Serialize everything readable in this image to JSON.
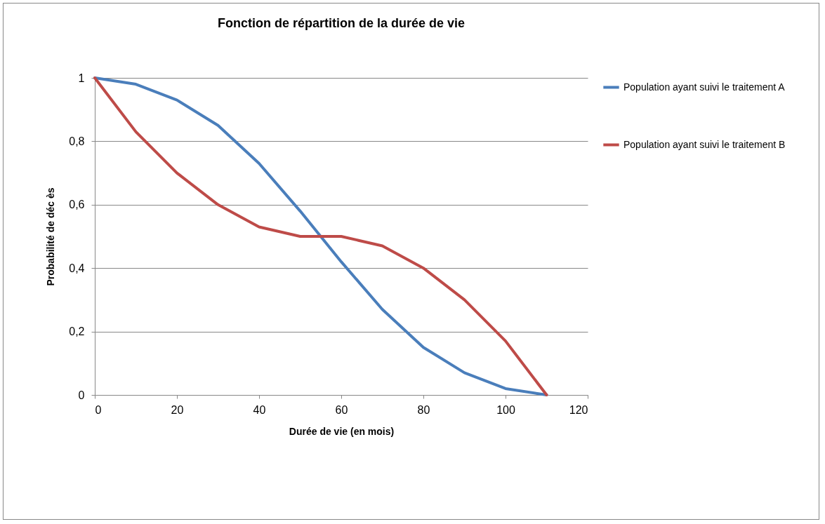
{
  "chart_data": {
    "type": "line",
    "title": "Fonction de répartition de la durée de vie",
    "xlabel": "Durée de vie (en mois)",
    "ylabel": "Probabilité de déc ès",
    "x": [
      0,
      10,
      20,
      30,
      40,
      50,
      60,
      70,
      80,
      90,
      100,
      110
    ],
    "series": [
      {
        "name": "Population ayant suivi le traitement A",
        "color": "#4a7ebb",
        "values": [
          1,
          0.98,
          0.93,
          0.85,
          0.73,
          0.58,
          0.42,
          0.27,
          0.15,
          0.07,
          0.02,
          0
        ]
      },
      {
        "name": "Population ayant suivi le traitement B",
        "color": "#be4b48",
        "values": [
          1,
          0.83,
          0.7,
          0.6,
          0.53,
          0.5,
          0.5,
          0.47,
          0.4,
          0.3,
          0.17,
          0
        ]
      }
    ],
    "xlim": [
      0,
      120
    ],
    "xticks": [
      0,
      20,
      40,
      60,
      80,
      100,
      120
    ],
    "ylim": [
      0,
      1
    ],
    "yticks": [
      0,
      {
        "value": 0.2,
        "label": "0,2"
      },
      {
        "value": 0.4,
        "label": "0,4"
      },
      {
        "value": 0.6,
        "label": "0,6"
      },
      {
        "value": 0.8,
        "label": "0,8"
      },
      1
    ],
    "grid": "y",
    "legend": "right",
    "marker": "none",
    "line_style": "solid"
  }
}
